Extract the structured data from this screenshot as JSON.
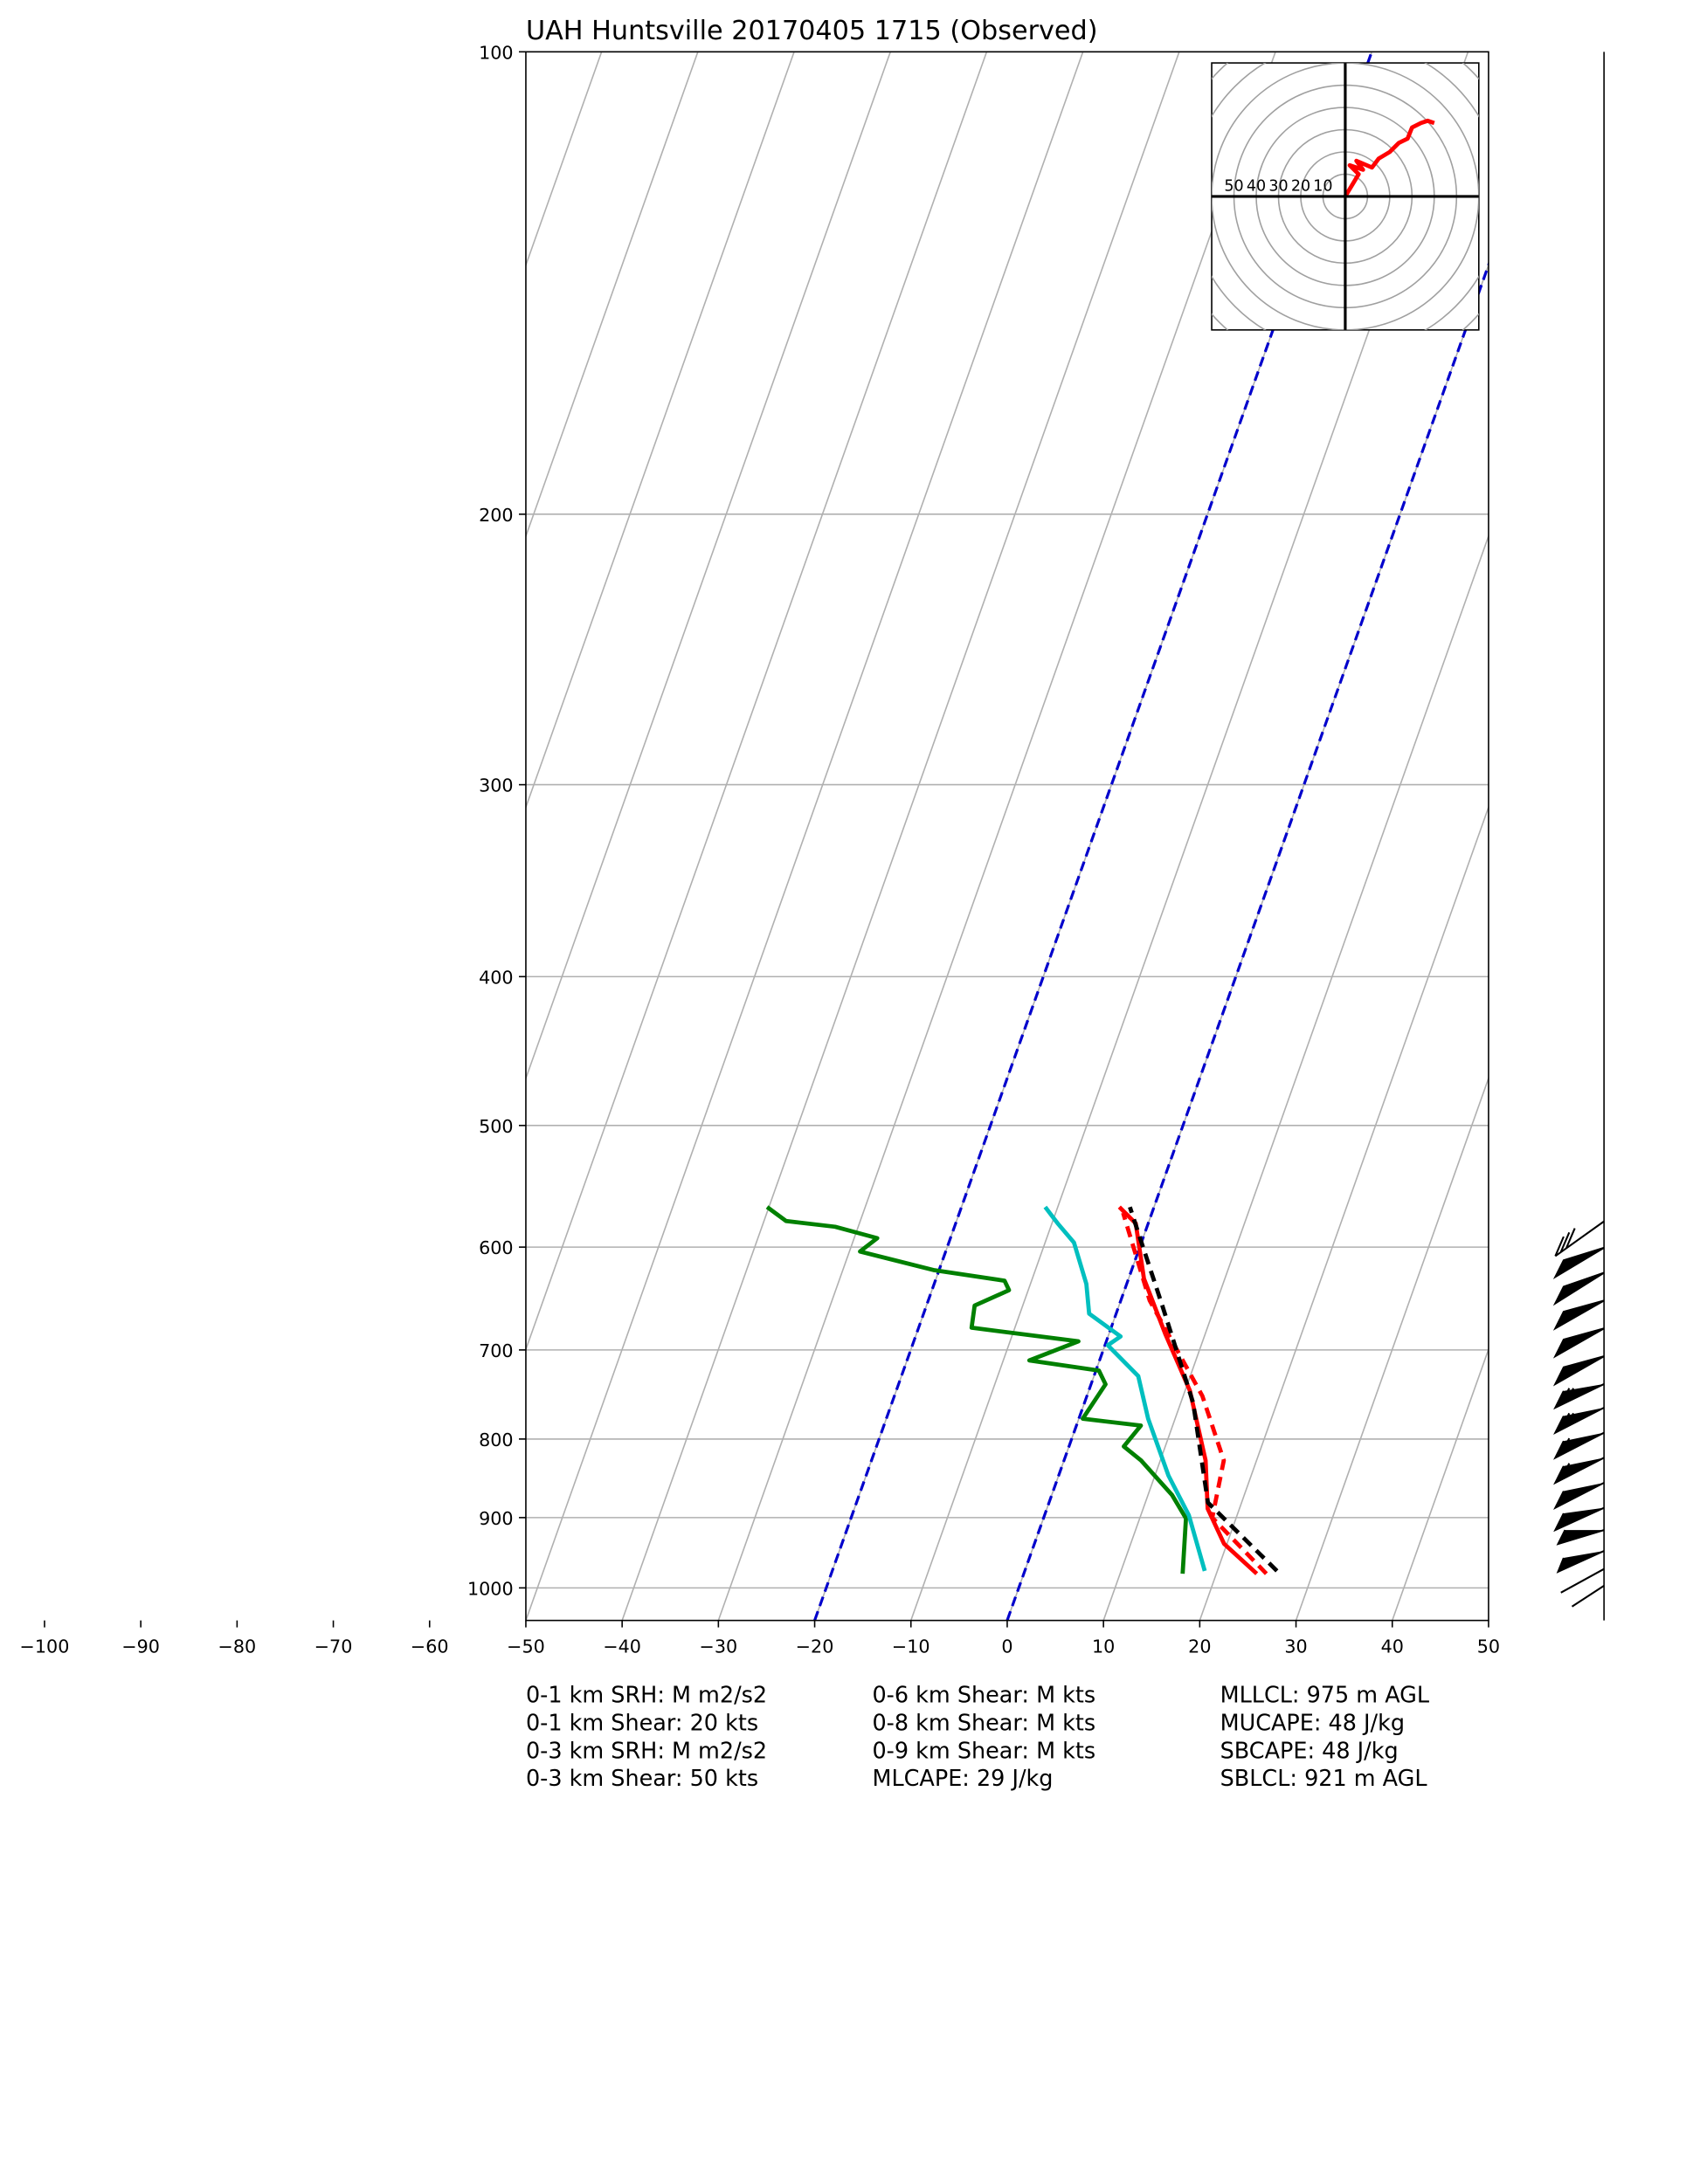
{
  "chart_data": {
    "type": "skewt",
    "title": "UAH Huntsville 20170405 1715   (Observed)",
    "xlim": [
      -50,
      50
    ],
    "xticks": [
      {
        "value": -100,
        "label": "−100"
      },
      {
        "value": -90,
        "label": "−90"
      },
      {
        "value": -80,
        "label": "−80"
      },
      {
        "value": -70,
        "label": "−70"
      },
      {
        "value": -60,
        "label": "−60"
      },
      {
        "value": -50,
        "label": "−50"
      },
      {
        "value": -40,
        "label": "−40"
      },
      {
        "value": -30,
        "label": "−30"
      },
      {
        "value": -20,
        "label": "−20"
      },
      {
        "value": -10,
        "label": "−10"
      },
      0,
      10,
      20,
      30,
      40,
      50
    ],
    "ylim": [
      1050,
      100
    ],
    "yticks": [
      100,
      200,
      300,
      400,
      500,
      600,
      700,
      800,
      900,
      1000
    ],
    "log_scale": true,
    "grid": true,
    "highlight_isotherms": [
      0,
      -20
    ],
    "highlight_color": "#0000cc",
    "series": [
      {
        "color": "#ff0000",
        "dash": false,
        "x": [
          24.2,
          19.7,
          16.7,
          14.7,
          10.5,
          5.9,
          1.6,
          -1.3,
          -3.6
        ],
        "values": [
          979,
          936,
          888,
          826,
          744,
          684,
          629,
          579,
          565
        ]
      },
      {
        "color": "#ff0000",
        "dash": true,
        "x": [
          25.2,
          17.5,
          16.6,
          12,
          3,
          -3
        ],
        "values": [
          979,
          900,
          826,
          750,
          650,
          570
        ]
      },
      {
        "color": "#008000",
        "dash": false,
        "x": [
          16.5,
          14.8,
          12.5,
          8,
          5.7,
          6.7,
          0.4,
          1.5,
          0.3,
          -7.3,
          -2.9,
          -14.5,
          -15,
          -12,
          -12.8,
          -20.6,
          -28.9,
          -27.6,
          -32.4,
          -37.7,
          -40.2
        ],
        "values": [
          979,
          901,
          870,
          826,
          809,
          784,
          776,
          737,
          722,
          711,
          691,
          677,
          655,
          640,
          631,
          621,
          604,
          592,
          582,
          577,
          565
        ]
      },
      {
        "color": "#00bfbf",
        "dash": false,
        "x": [
          18.7,
          15,
          11.4,
          7.2,
          4.6,
          0.3,
          1.3,
          -2.8,
          -4.2,
          -7,
          -9.4,
          -11.3
        ],
        "values": [
          975,
          897,
          845,
          776,
          728,
          695,
          686,
          663,
          634,
          596,
          579,
          565
        ]
      },
      {
        "color": "#000000",
        "dash": true,
        "x": [
          26.2,
          16.5,
          11.3,
          4.5,
          -0.3,
          -2.5
        ],
        "values": [
          975,
          880,
          758,
          655,
          592,
          565
        ]
      }
    ],
    "hodograph": {
      "ring_labels": [
        "50",
        "40",
        "30",
        "20",
        "10"
      ],
      "ring_values": [
        50,
        40,
        30,
        20,
        10
      ],
      "color": "#ff0000",
      "u": [
        0,
        3,
        6,
        2,
        8,
        5,
        12,
        15,
        20,
        24,
        28,
        30,
        34,
        37,
        40
      ],
      "v": [
        0,
        5,
        10,
        14,
        12,
        16,
        13,
        17,
        20,
        24,
        26,
        31,
        33,
        34,
        33
      ]
    },
    "stats": [
      [
        "0-1 km SRH: M m2/s2",
        "0-1 km Shear: 20 kts",
        "0-3 km SRH: M m2/s2",
        "0-3 km Shear: 50 kts"
      ],
      [
        "0-6 km Shear: M kts",
        "0-8 km Shear: M kts",
        "0-9 km Shear: M kts",
        "MLCAPE: 29 J/kg"
      ],
      [
        "MLLCL: 975 m AGL",
        "MUCAPE: 48 J/kg",
        "SBCAPE: 48 J/kg",
        "SBLCL: 921 m AGL"
      ]
    ]
  }
}
